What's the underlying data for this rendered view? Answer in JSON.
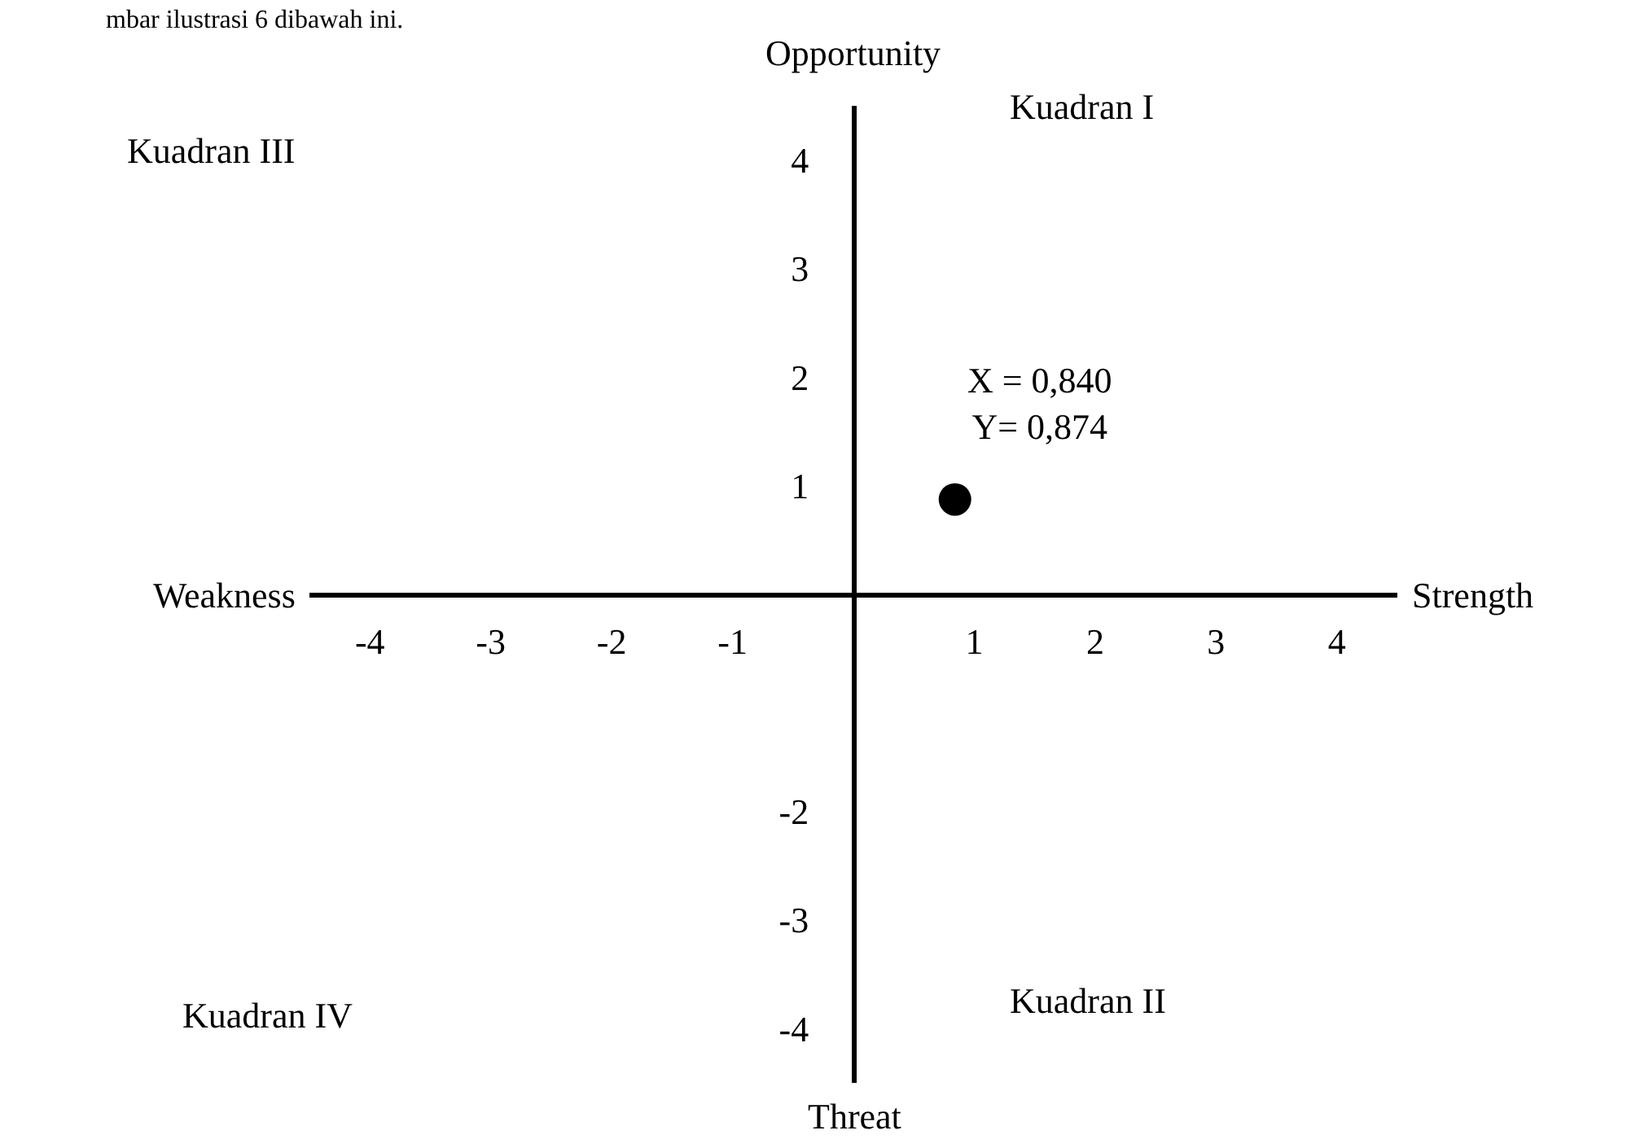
{
  "chart_data": {
    "type": "scatter",
    "x": [
      0.84
    ],
    "values": [
      0.874
    ],
    "color": "#000000",
    "marker": "circle",
    "xlim": [
      -4.5,
      4.5
    ],
    "ylim": [
      -4.5,
      4.5
    ],
    "xticks": [
      -4,
      -3,
      -2,
      -1,
      1,
      2,
      3,
      4
    ],
    "yticks": [
      4,
      3,
      2,
      1,
      -2,
      -3,
      -4
    ],
    "xlabel": "Strength",
    "ylabel": "Opportunity",
    "grid": false,
    "annotations": [
      {
        "text": "X = 0,840\nY= 0,874",
        "x": 0.84,
        "y": 0.874
      },
      "Weakness",
      "Threat",
      "Kuadran I",
      "Kuadran II",
      "Kuadran III",
      "Kuadran IV",
      "mbar ilustrasi 6 dibawah ini."
    ]
  }
}
